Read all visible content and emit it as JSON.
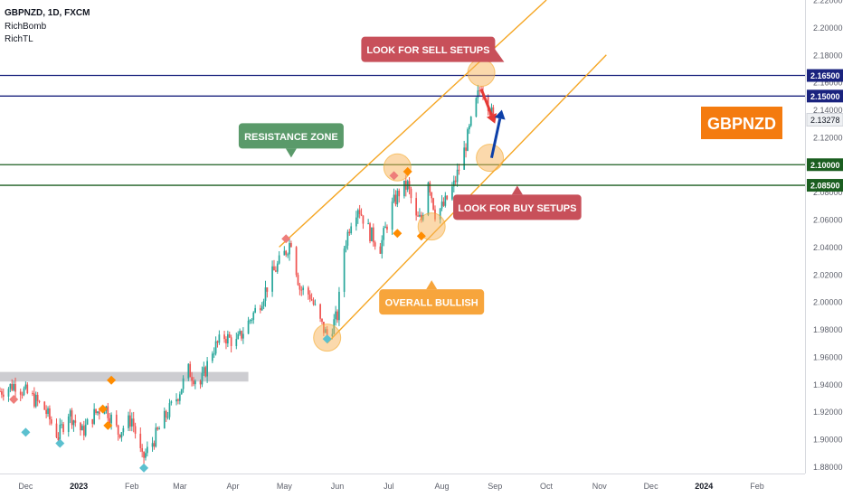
{
  "header": {
    "symbol_line": "GBPNZD, 1D, FXCM",
    "indicators": [
      "RichBomb",
      "RichTL"
    ]
  },
  "badge": {
    "text": "GBPNZD",
    "color": "#f47b0f"
  },
  "colors": {
    "up": "#26a69a",
    "down": "#ef5350",
    "channel": "#f5a623",
    "resistance_line": "#1a237e",
    "support_line": "#1b5e20",
    "grey_zone": "#c8c8cc",
    "sell_marker": "#ee7d7a",
    "buy_marker": "#5bc0cf",
    "orange_marker": "#ff8c00"
  },
  "chart_data": {
    "type": "candlestick",
    "symbol": "GBPNZD",
    "timeframe": "1D",
    "x": {
      "tick_labels": [
        "Dec",
        "2023",
        "Feb",
        "Mar",
        "Apr",
        "May",
        "Jun",
        "Jul",
        "Aug",
        "Sep",
        "Oct",
        "Nov",
        "Dec",
        "2024",
        "Feb"
      ],
      "bold_ticks": [
        "2023",
        "2024"
      ],
      "start": "2022-11-16",
      "end": "2024-02-29"
    },
    "y": {
      "ylim": [
        1.875,
        2.22
      ],
      "tick_labels": [
        "2.22000",
        "2.20000",
        "2.18000",
        "2.16000",
        "2.14000",
        "2.12000",
        "2.10000",
        "2.08000",
        "2.06000",
        "2.04000",
        "2.02000",
        "2.00000",
        "1.98000",
        "1.96000",
        "1.94000",
        "1.92000",
        "1.90000",
        "1.88000"
      ],
      "tick_values": [
        2.22,
        2.2,
        2.18,
        2.16,
        2.14,
        2.12,
        2.1,
        2.08,
        2.06,
        2.04,
        2.02,
        2.0,
        1.98,
        1.96,
        1.94,
        1.92,
        1.9,
        1.88
      ]
    },
    "last_price": {
      "label": "2.13278",
      "value": 2.13278
    },
    "closes_anchors": [
      [
        "2022-11-16",
        1.935
      ],
      [
        "2022-11-25",
        1.94
      ],
      [
        "2022-12-05",
        1.93
      ],
      [
        "2022-12-12",
        1.922
      ],
      [
        "2022-12-20",
        1.902
      ],
      [
        "2022-12-26",
        1.92
      ],
      [
        "2023-01-03",
        1.905
      ],
      [
        "2023-01-10",
        1.918
      ],
      [
        "2023-01-16",
        1.925
      ],
      [
        "2023-01-24",
        1.905
      ],
      [
        "2023-02-01",
        1.915
      ],
      [
        "2023-02-07",
        1.885
      ],
      [
        "2023-02-14",
        1.9
      ],
      [
        "2023-02-20",
        1.915
      ],
      [
        "2023-02-27",
        1.93
      ],
      [
        "2023-03-06",
        1.95
      ],
      [
        "2023-03-13",
        1.94
      ],
      [
        "2023-03-20",
        1.965
      ],
      [
        "2023-03-27",
        1.975
      ],
      [
        "2023-04-03",
        1.97
      ],
      [
        "2023-04-10",
        1.985
      ],
      [
        "2023-04-17",
        2.0
      ],
      [
        "2023-04-24",
        2.02
      ],
      [
        "2023-05-01",
        2.035
      ],
      [
        "2023-05-05",
        2.045
      ],
      [
        "2023-05-10",
        2.01
      ],
      [
        "2023-05-16",
        2.005
      ],
      [
        "2023-05-22",
        1.985
      ],
      [
        "2023-05-26",
        1.975
      ],
      [
        "2023-06-01",
        1.99
      ],
      [
        "2023-06-05",
        2.04
      ],
      [
        "2023-06-09",
        2.06
      ],
      [
        "2023-06-13",
        2.07
      ],
      [
        "2023-06-20",
        2.05
      ],
      [
        "2023-06-26",
        2.04
      ],
      [
        "2023-07-03",
        2.07
      ],
      [
        "2023-07-07",
        2.08
      ],
      [
        "2023-07-12",
        2.085
      ],
      [
        "2023-07-17",
        2.06
      ],
      [
        "2023-07-20",
        2.06
      ],
      [
        "2023-07-24",
        2.09
      ],
      [
        "2023-07-28",
        2.065
      ],
      [
        "2023-08-02",
        2.07
      ],
      [
        "2023-08-08",
        2.085
      ],
      [
        "2023-08-14",
        2.11
      ],
      [
        "2023-08-18",
        2.13
      ],
      [
        "2023-08-22",
        2.15
      ],
      [
        "2023-08-24",
        2.158
      ],
      [
        "2023-08-28",
        2.145
      ],
      [
        "2023-08-31",
        2.133
      ]
    ],
    "horizontal_levels": [
      {
        "value": 2.165,
        "label": "2.16500",
        "kind": "resistance"
      },
      {
        "value": 2.15,
        "label": "2.15000",
        "kind": "resistance"
      },
      {
        "value": 2.1,
        "label": "2.10000",
        "kind": "support"
      },
      {
        "value": 2.085,
        "label": "2.08500",
        "kind": "support"
      }
    ],
    "grey_zone": {
      "from": "2022-11-10",
      "to": "2023-04-10",
      "y_top": 1.949,
      "y_bottom": 1.942
    },
    "channel": {
      "upper": [
        [
          "2023-04-28",
          2.04
        ],
        [
          "2023-10-01",
          2.22
        ]
      ],
      "lower": [
        [
          "2023-05-26",
          1.97
        ],
        [
          "2023-11-05",
          2.18
        ]
      ]
    },
    "arrows": [
      {
        "name": "sell-arrow",
        "from": [
          "2023-08-24",
          2.155
        ],
        "to": [
          "2023-09-01",
          2.13
        ],
        "color": "#e53935"
      },
      {
        "name": "buy-arrow",
        "from": [
          "2023-08-30",
          2.105
        ],
        "to": [
          "2023-09-05",
          2.14
        ],
        "color": "#0d3fa8"
      }
    ],
    "circles": [
      [
        "2023-08-24",
        2.167
      ],
      [
        "2023-08-29",
        2.105
      ],
      [
        "2023-07-06",
        2.098
      ],
      [
        "2023-07-26",
        2.055
      ],
      [
        "2023-05-26",
        1.974
      ]
    ],
    "markers": [
      {
        "date": "2022-11-24",
        "value": 1.929,
        "type": "sell"
      },
      {
        "date": "2022-12-01",
        "value": 1.905,
        "type": "buy"
      },
      {
        "date": "2022-12-21",
        "value": 1.897,
        "type": "buy"
      },
      {
        "date": "2023-01-15",
        "value": 1.922,
        "type": "orange"
      },
      {
        "date": "2023-01-20",
        "value": 1.943,
        "type": "orange"
      },
      {
        "date": "2023-01-18",
        "value": 1.91,
        "type": "orange"
      },
      {
        "date": "2023-02-08",
        "value": 1.879,
        "type": "buy"
      },
      {
        "date": "2023-05-02",
        "value": 2.046,
        "type": "sell"
      },
      {
        "date": "2023-05-26",
        "value": 1.973,
        "type": "buy"
      },
      {
        "date": "2023-07-04",
        "value": 2.092,
        "type": "sell"
      },
      {
        "date": "2023-07-12",
        "value": 2.095,
        "type": "orange"
      },
      {
        "date": "2023-07-06",
        "value": 2.05,
        "type": "orange"
      },
      {
        "date": "2023-07-20",
        "value": 2.048,
        "type": "orange"
      }
    ],
    "annotations": [
      {
        "text": "LOOK FOR SELL SETUPS",
        "color": "#c8505a",
        "anchor": [
          "2023-07-24",
          2.184
        ],
        "pointer": "right"
      },
      {
        "text": "LOOK FOR BUY SETUPS",
        "color": "#c8505a",
        "anchor": [
          "2023-09-14",
          2.069
        ],
        "pointer": "up"
      },
      {
        "text": "RESISTANCE ZONE",
        "color": "#5a9a6a",
        "anchor": [
          "2023-05-05",
          2.121
        ],
        "pointer": "down"
      },
      {
        "text": "OVERALL BULLISH",
        "color": "#f7a53c",
        "anchor": [
          "2023-07-26",
          2.0
        ],
        "pointer": "up"
      }
    ]
  }
}
